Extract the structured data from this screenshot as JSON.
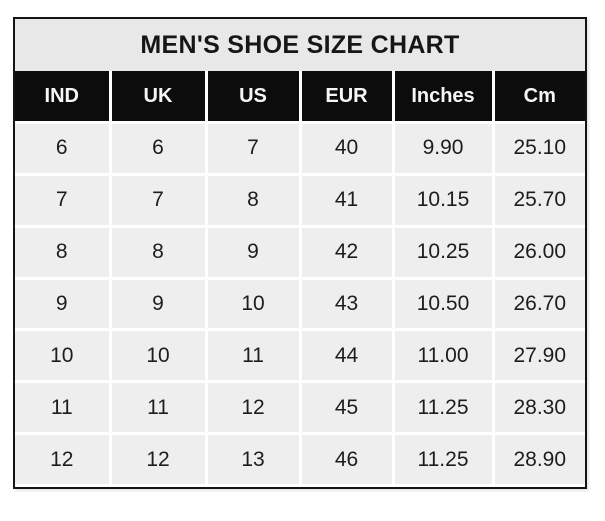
{
  "title": "MEN'S SHOE SIZE CHART",
  "chart_data": {
    "type": "table",
    "title": "MEN'S SHOE SIZE CHART",
    "columns": [
      "IND",
      "UK",
      "US",
      "EUR",
      "Inches",
      "Cm"
    ],
    "rows": [
      [
        "6",
        "6",
        "7",
        "40",
        "9.90",
        "25.10"
      ],
      [
        "7",
        "7",
        "8",
        "41",
        "10.15",
        "25.70"
      ],
      [
        "8",
        "8",
        "9",
        "42",
        "10.25",
        "26.00"
      ],
      [
        "9",
        "9",
        "10",
        "43",
        "10.50",
        "26.70"
      ],
      [
        "10",
        "10",
        "11",
        "44",
        "11.00",
        "27.90"
      ],
      [
        "11",
        "11",
        "12",
        "45",
        "11.25",
        "28.30"
      ],
      [
        "12",
        "12",
        "13",
        "46",
        "11.25",
        "28.90"
      ]
    ]
  },
  "colors": {
    "page_bg": "#ffffff",
    "table_border": "#141414",
    "title_bg": "#e9e8e8",
    "title_text": "#161616",
    "header_bg": "#0c0c0c",
    "header_text": "#f7f6f4",
    "cell_bg": "#efeeee",
    "cell_text": "#1d1d1d",
    "separator": "#ffffff"
  }
}
